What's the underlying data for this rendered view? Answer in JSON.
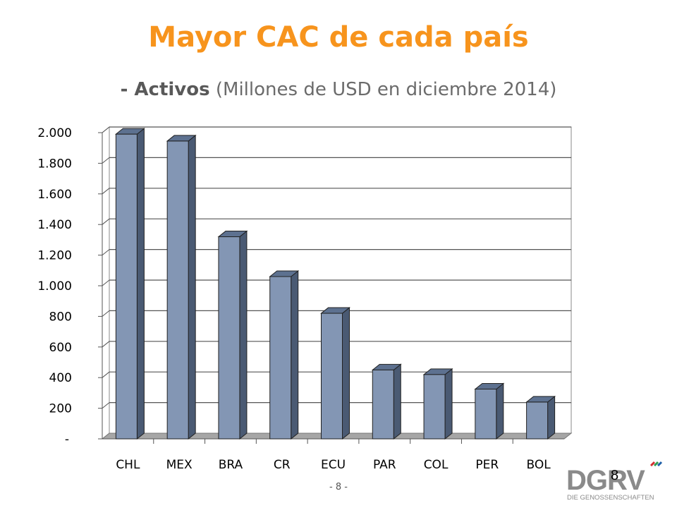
{
  "title": "Mayor CAC de cada país",
  "subtitle": {
    "prefix": "- Activos",
    "rest": " (Millones de USD en diciembre 2014)"
  },
  "chart_data": {
    "type": "bar",
    "categories": [
      "CHL",
      "MEX",
      "BRA",
      "CR",
      "ECU",
      "PAR",
      "COL",
      "PER",
      "BOL"
    ],
    "values": [
      1990,
      1945,
      1320,
      1060,
      820,
      450,
      420,
      325,
      240
    ],
    "ylim": [
      0,
      2000
    ],
    "yticks": [
      0,
      200,
      400,
      600,
      800,
      1000,
      1200,
      1400,
      1600,
      1800,
      2000
    ],
    "ytick_labels": [
      "-",
      "200",
      "400",
      "600",
      "800",
      "1.000",
      "1.200",
      "1.400",
      "1.600",
      "1.800",
      "2.000"
    ],
    "grid": true,
    "style": "3d-column",
    "colors": {
      "bar_front": "#8396b4",
      "bar_top": "#5d7190",
      "bar_side": "#4a5a73",
      "floor": "#a6a6a6"
    }
  },
  "footer": {
    "page_label": "- 8 -",
    "slide_number": "8",
    "logo_text": "DGRV",
    "logo_subtext": "DIE GENOSSENSCHAFTEN"
  }
}
